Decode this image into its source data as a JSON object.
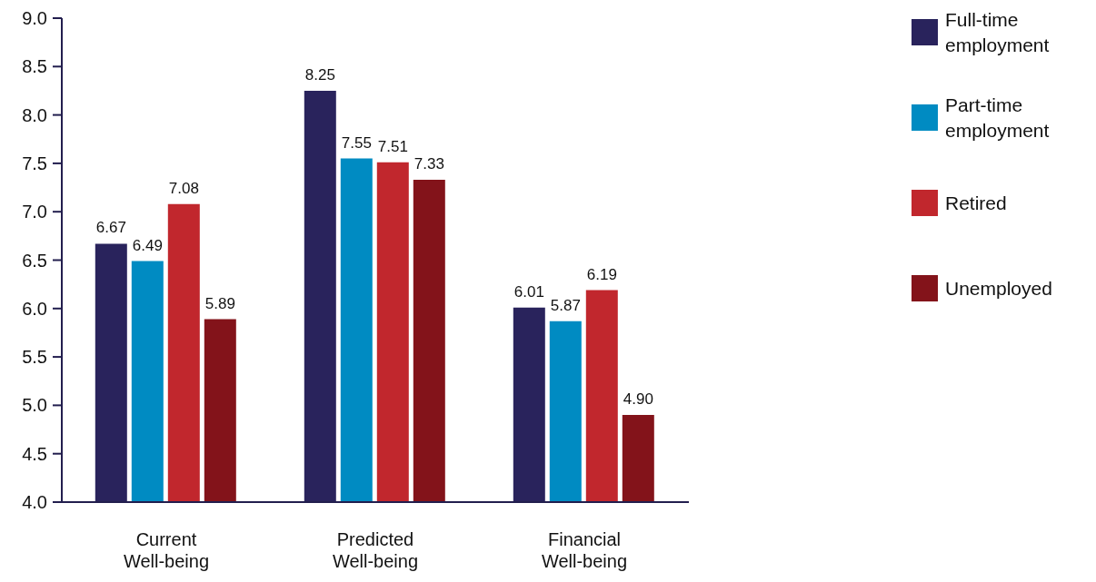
{
  "chart_data": {
    "type": "bar",
    "categories": [
      "Current Well-being",
      "Predicted Well-being",
      "Financial Well-being"
    ],
    "series": [
      {
        "name": "Full-time employment",
        "color": "#29235c",
        "values": [
          6.67,
          8.25,
          6.01
        ],
        "value_labels": [
          "6.67",
          "8.25",
          "6.01"
        ]
      },
      {
        "name": "Part-time employment",
        "color": "#008bc2",
        "values": [
          6.49,
          7.55,
          5.87
        ],
        "value_labels": [
          "6.49",
          "7.55",
          "5.87"
        ]
      },
      {
        "name": "Retired",
        "color": "#c1272d",
        "values": [
          7.08,
          7.51,
          6.19
        ],
        "value_labels": [
          "7.08",
          "7.51",
          "6.19"
        ]
      },
      {
        "name": "Unemployed",
        "color": "#83131a",
        "values": [
          5.89,
          7.33,
          4.9
        ],
        "value_labels": [
          "5.89",
          "7.33",
          "4.90"
        ]
      }
    ],
    "ylim": [
      4,
      9
    ],
    "yticks": [
      {
        "value": 4,
        "label": "4.0"
      },
      {
        "value": 4.5,
        "label": "4.5"
      },
      {
        "value": 5,
        "label": "5.0"
      },
      {
        "value": 5.5,
        "label": "5.5"
      },
      {
        "value": 6,
        "label": "6.0"
      },
      {
        "value": 6.5,
        "label": "6.5"
      },
      {
        "value": 7,
        "label": "7.0"
      },
      {
        "value": 7.5,
        "label": "7.5"
      },
      {
        "value": 8,
        "label": "8.0"
      },
      {
        "value": 8.5,
        "label": "8.5"
      },
      {
        "value": 9,
        "label": "9.0"
      }
    ],
    "grid": false,
    "legend": "top right"
  }
}
